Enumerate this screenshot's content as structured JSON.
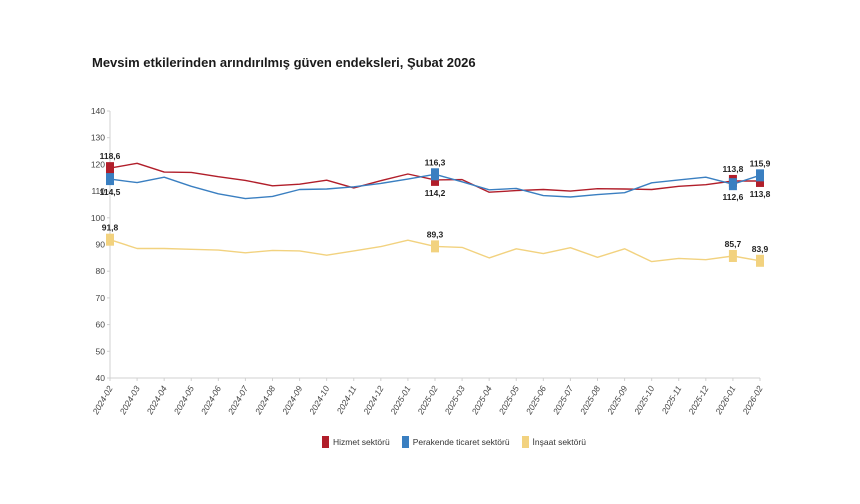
{
  "chart_data": {
    "type": "line",
    "title": "Mevsim etkilerinden arındırılmış güven endeksleri, Şubat 2026",
    "xlabel": "",
    "ylabel": "",
    "ylim": [
      40,
      140
    ],
    "yticks": [
      40,
      50,
      60,
      70,
      80,
      90,
      100,
      110,
      120,
      130,
      140
    ],
    "categories": [
      "2024-02",
      "2024-03",
      "2024-04",
      "2024-05",
      "2024-06",
      "2024-07",
      "2024-08",
      "2024-09",
      "2024-10",
      "2024-11",
      "2024-12",
      "2025-01",
      "2025-02",
      "2025-03",
      "2025-04",
      "2025-05",
      "2025-06",
      "2025-07",
      "2025-08",
      "2025-09",
      "2025-10",
      "2025-11",
      "2025-12",
      "2026-01",
      "2026-02"
    ],
    "grid": false,
    "legend_position": "bottom",
    "series": [
      {
        "name": "Hizmet sektörü",
        "color": "#b11e2a",
        "values": [
          118.6,
          120.4,
          117.1,
          117.0,
          115.4,
          114.0,
          112.0,
          112.6,
          114.1,
          111.2,
          113.9,
          116.4,
          114.2,
          114.3,
          109.6,
          110.2,
          110.6,
          110.0,
          110.9,
          110.8,
          110.6,
          111.8,
          112.4,
          113.8,
          113.8
        ],
        "labels": [
          {
            "index": 0,
            "text": "118,6",
            "pos": "above"
          },
          {
            "index": 12,
            "text": "114,2",
            "pos": "below"
          },
          {
            "index": 23,
            "text": "113,8",
            "pos": "above"
          },
          {
            "index": 24,
            "text": "113,8",
            "pos": "below"
          }
        ]
      },
      {
        "name": "Perakende ticaret sektörü",
        "color": "#3a7fc1",
        "values": [
          114.5,
          113.2,
          115.2,
          111.8,
          109.0,
          107.2,
          108.0,
          110.6,
          110.8,
          111.6,
          112.9,
          114.5,
          116.3,
          113.5,
          110.5,
          111.0,
          108.3,
          107.8,
          108.7,
          109.4,
          113.1,
          114.2,
          115.2,
          112.6,
          115.9
        ],
        "labels": [
          {
            "index": 0,
            "text": "114,5",
            "pos": "below"
          },
          {
            "index": 12,
            "text": "116,3",
            "pos": "above"
          },
          {
            "index": 23,
            "text": "112,6",
            "pos": "below"
          },
          {
            "index": 24,
            "text": "115,9",
            "pos": "above"
          }
        ]
      },
      {
        "name": "İnşaat sektörü",
        "color": "#f2d27f",
        "values": [
          91.8,
          88.5,
          88.5,
          88.2,
          87.9,
          86.9,
          87.8,
          87.6,
          86.0,
          87.6,
          89.2,
          91.6,
          89.3,
          88.9,
          85.0,
          88.4,
          86.6,
          88.8,
          85.2,
          88.4,
          83.6,
          84.8,
          84.3,
          85.7,
          83.9
        ],
        "labels": [
          {
            "index": 0,
            "text": "91,8",
            "pos": "above"
          },
          {
            "index": 12,
            "text": "89,3",
            "pos": "above"
          },
          {
            "index": 23,
            "text": "85,7",
            "pos": "above"
          },
          {
            "index": 24,
            "text": "83,9",
            "pos": "above"
          }
        ]
      }
    ],
    "highlight_indices": [
      0,
      12,
      23,
      24
    ]
  }
}
